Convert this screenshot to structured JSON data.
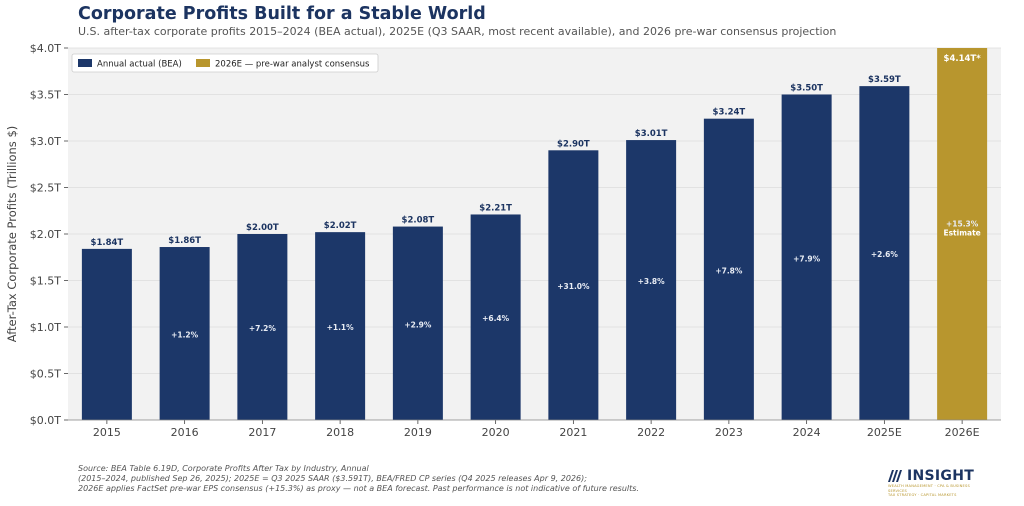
{
  "header": {
    "title": "Corporate Profits Built for a Stable World",
    "subtitle": "U.S. after-tax corporate profits 2015–2024 (BEA actual), 2025E (Q3 SAAR, most recent available), and 2026 pre-war consensus projection"
  },
  "chart_data": {
    "type": "bar",
    "title": "Corporate Profits Built for a Stable World",
    "xlabel": "",
    "ylabel": "After-Tax Corporate Profits (Trillions $)",
    "ylim": [
      0,
      4.0
    ],
    "yticks": [
      0,
      0.5,
      1.0,
      1.5,
      2.0,
      2.5,
      3.0,
      3.5,
      4.0
    ],
    "ytick_labels": [
      "$0.0T",
      "$0.5T",
      "$1.0T",
      "$1.5T",
      "$2.0T",
      "$2.5T",
      "$3.0T",
      "$3.5T",
      "$4.0T"
    ],
    "grid": true,
    "legend_position": "top-left",
    "categories": [
      "2015",
      "2016",
      "2017",
      "2018",
      "2019",
      "2020",
      "2021",
      "2022",
      "2023",
      "2024",
      "2025E",
      "2026E"
    ],
    "values": [
      1.84,
      1.86,
      2.0,
      2.02,
      2.08,
      2.21,
      2.9,
      3.01,
      3.24,
      3.5,
      3.59,
      4.14
    ],
    "value_labels": [
      "$1.84T",
      "$1.86T",
      "$2.00T",
      "$2.02T",
      "$2.08T",
      "$2.21T",
      "$2.90T",
      "$3.01T",
      "$3.24T",
      "$3.50T",
      "$3.59T",
      "$4.14T*"
    ],
    "growth_labels": [
      "",
      "+1.2%",
      "+7.2%",
      "+1.1%",
      "+2.9%",
      "+6.4%",
      "+31.0%",
      "+3.8%",
      "+7.8%",
      "+7.9%",
      "+2.6%",
      "+15.3%"
    ],
    "estimate_label": "Estimate",
    "series_type": [
      "actual",
      "actual",
      "actual",
      "actual",
      "actual",
      "actual",
      "actual",
      "actual",
      "actual",
      "actual",
      "actual",
      "estimate"
    ],
    "legend": [
      {
        "name": "Annual actual (BEA)",
        "color": "#1c3769"
      },
      {
        "name": "2026E — pre-war analyst consensus",
        "color": "#b8962e"
      }
    ],
    "colors": {
      "actual": "#1c3769",
      "estimate": "#b8962e",
      "plot_bg": "#f2f2f2"
    }
  },
  "footnote": {
    "lines": [
      "Source: BEA Table 6.19D, Corporate Profits After Tax by Industry, Annual",
      "(2015–2024, published Sep 26, 2025); 2025E = Q3 2025 SAAR ($3.591T), BEA/FRED CP series (Q4 2025 releases Apr 9, 2026);",
      "2026E applies FactSet pre-war EPS consensus (+15.3%) as proxy — not a BEA forecast.   Past performance is not indicative of future results."
    ]
  },
  "logo": {
    "name": "INSIGHT",
    "tagline_1": "WEALTH MANAGEMENT · CPA & BUSINESS SERVICES",
    "tagline_2": "TAX STRATEGY · CAPITAL MARKETS"
  }
}
